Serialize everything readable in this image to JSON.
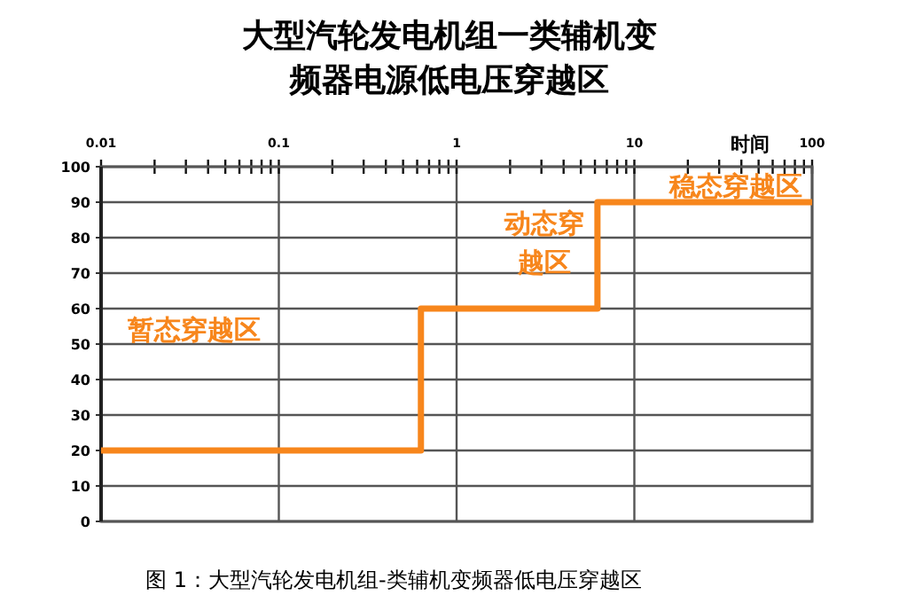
{
  "chart_data": {
    "type": "step",
    "title": "大型汽轮发电机组一类辅机变频器电源低电压穿越区",
    "xlabel": "时间",
    "log": "x",
    "x": [
      0.01,
      0.63,
      6.2,
      100
    ],
    "series": [
      {
        "color": "#f7861c",
        "values": [
          20,
          60,
          90,
          90
        ]
      }
    ],
    "xlim": [
      0.01,
      100
    ],
    "ylim": [
      0,
      100
    ],
    "xticks": [
      0.01,
      {
        "value": 0.02,
        "label": null
      },
      {
        "value": 0.03,
        "label": null
      },
      {
        "value": 0.04,
        "label": null
      },
      {
        "value": 0.05,
        "label": null
      },
      {
        "value": 0.06,
        "label": null
      },
      {
        "value": 0.07,
        "label": null
      },
      {
        "value": 0.08,
        "label": null
      },
      {
        "value": 0.09,
        "label": null
      },
      0.1,
      {
        "value": 0.2,
        "label": null
      },
      {
        "value": 0.3,
        "label": null
      },
      {
        "value": 0.4,
        "label": null
      },
      {
        "value": 0.5,
        "label": null
      },
      {
        "value": 0.6,
        "label": null
      },
      {
        "value": 0.7,
        "label": null
      },
      {
        "value": 0.8,
        "label": null
      },
      {
        "value": 0.9,
        "label": null
      },
      1,
      {
        "value": 2,
        "label": null
      },
      {
        "value": 3,
        "label": null
      },
      {
        "value": 4,
        "label": null
      },
      {
        "value": 5,
        "label": null
      },
      {
        "value": 6,
        "label": null
      },
      {
        "value": 7,
        "label": null
      },
      {
        "value": 8,
        "label": null
      },
      {
        "value": 9,
        "label": null
      },
      10,
      {
        "value": 20,
        "label": null
      },
      {
        "value": 30,
        "label": null
      },
      {
        "value": 40,
        "label": null
      },
      {
        "value": 50,
        "label": null
      },
      {
        "value": 60,
        "label": null
      },
      {
        "value": 70,
        "label": null
      },
      {
        "value": 80,
        "label": null
      },
      {
        "value": 90,
        "label": null
      },
      100
    ],
    "yticks": [
      0,
      10,
      20,
      30,
      40,
      50,
      60,
      70,
      80,
      90,
      100
    ],
    "grid": true,
    "line_style": "solid",
    "marker": "none",
    "annotations": [
      "暂态穿越区",
      "动态穿越区",
      "稳态穿越区",
      "图 1：大型汽轮发电机组-类辅机变频器低电压穿越区"
    ]
  }
}
